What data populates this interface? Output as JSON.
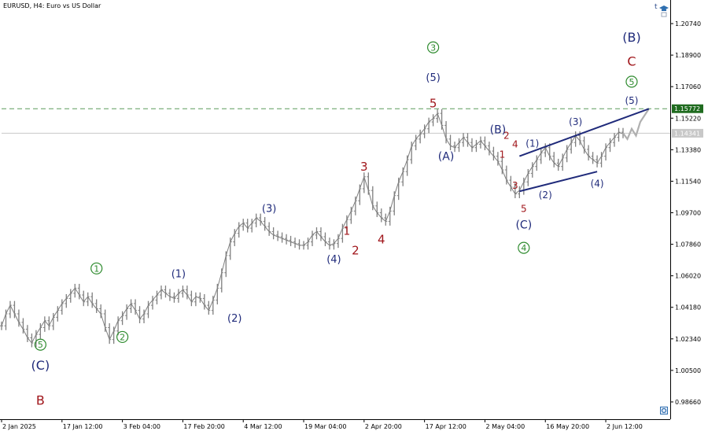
{
  "header": {
    "symbol": "EURUSD",
    "timeframe": "H4",
    "description": "Euro vs US Dollar"
  },
  "icons": {
    "trading": "t",
    "cap": "graduation-cap-icon",
    "marker": "circle-marker-icon"
  },
  "colors": {
    "price": "#7f7f7f",
    "wave_blue": "#1f2a7a",
    "wave_red": "#a0161b",
    "wave_green": "#2e8b2e",
    "level_line": "#5a9a5a",
    "level_badge": "#1f6b1f",
    "current_badge": "#c8c8c8",
    "channel": "#1f2a7a",
    "projection": "#b0b0b0"
  },
  "chart_data": {
    "type": "line",
    "ylim": [
      0.9765,
      1.2175
    ],
    "y_ticks": [
      "1.20740",
      "1.18900",
      "1.17060",
      "1.15220",
      "1.13380",
      "1.11540",
      "1.09700",
      "1.07860",
      "1.06020",
      "1.04180",
      "1.02340",
      "1.00500",
      "0.98660"
    ],
    "x_ticks": [
      "2 Jan 2025",
      "17 Jan 12:00",
      "3 Feb 04:00",
      "17 Feb 20:00",
      "4 Mar 12:00",
      "19 Mar 04:00",
      "2 Apr 20:00",
      "17 Apr 12:00",
      "2 May 04:00",
      "16 May 20:00",
      "2 Jun 12:00"
    ],
    "x_tick_index": [
      0,
      14,
      28,
      42,
      56,
      70,
      84,
      98,
      112,
      126,
      140
    ],
    "price_badges": [
      {
        "label": "1.15772",
        "value": 1.15772,
        "kind": "level"
      },
      {
        "label": "1.14341",
        "value": 1.14341,
        "kind": "current"
      }
    ],
    "close": [
      1.031,
      1.038,
      1.043,
      1.038,
      1.033,
      1.029,
      1.024,
      1.021,
      1.026,
      1.03,
      1.034,
      1.031,
      1.036,
      1.04,
      1.044,
      1.047,
      1.05,
      1.053,
      1.049,
      1.045,
      1.048,
      1.044,
      1.041,
      1.038,
      1.03,
      1.023,
      1.028,
      1.034,
      1.037,
      1.041,
      1.044,
      1.04,
      1.035,
      1.038,
      1.043,
      1.046,
      1.049,
      1.052,
      1.05,
      1.048,
      1.047,
      1.05,
      1.052,
      1.049,
      1.045,
      1.048,
      1.047,
      1.043,
      1.04,
      1.046,
      1.053,
      1.062,
      1.072,
      1.08,
      1.085,
      1.089,
      1.091,
      1.088,
      1.091,
      1.094,
      1.092,
      1.089,
      1.086,
      1.084,
      1.083,
      1.082,
      1.081,
      1.08,
      1.079,
      1.078,
      1.078,
      1.08,
      1.084,
      1.086,
      1.083,
      1.08,
      1.078,
      1.079,
      1.082,
      1.088,
      1.093,
      1.098,
      1.104,
      1.111,
      1.118,
      1.11,
      1.101,
      1.097,
      1.094,
      1.092,
      1.098,
      1.107,
      1.115,
      1.121,
      1.128,
      1.136,
      1.14,
      1.143,
      1.146,
      1.15,
      1.152,
      1.155,
      1.148,
      1.14,
      1.136,
      1.135,
      1.138,
      1.141,
      1.138,
      1.135,
      1.137,
      1.139,
      1.136,
      1.133,
      1.13,
      1.127,
      1.122,
      1.116,
      1.112,
      1.108,
      1.11,
      1.115,
      1.12,
      1.124,
      1.128,
      1.132,
      1.135,
      1.13,
      1.126,
      1.124,
      1.129,
      1.134,
      1.138,
      1.142,
      1.139,
      1.134,
      1.13,
      1.128,
      1.126,
      1.13,
      1.135,
      1.138,
      1.141,
      1.144,
      1.143
    ],
    "projection": [
      {
        "i": 144,
        "y": 1.1434
      },
      {
        "i": 145,
        "y": 1.14
      },
      {
        "i": 146,
        "y": 1.146
      },
      {
        "i": 147,
        "y": 1.142
      },
      {
        "i": 148,
        "y": 1.15
      },
      {
        "i": 150,
        "y": 1.1577
      }
    ],
    "channel_lines": [
      [
        {
          "i": 120,
          "y": 1.13
        },
        {
          "i": 150,
          "y": 1.1577
        }
      ],
      [
        {
          "i": 120,
          "y": 1.1095
        },
        {
          "i": 138,
          "y": 1.121
        }
      ]
    ],
    "wave_labels": [
      {
        "text": "(C)",
        "i": 9,
        "y": 1.008,
        "color": "blue",
        "size": 16
      },
      {
        "text": "5",
        "i": 9,
        "y": 1.02,
        "color": "green",
        "circled": true
      },
      {
        "text": "B",
        "i": 9,
        "y": 0.9875,
        "color": "red",
        "size": 16
      },
      {
        "text": "1",
        "i": 22,
        "y": 1.0645,
        "color": "green",
        "circled": true
      },
      {
        "text": "2",
        "i": 28,
        "y": 1.0245,
        "color": "green",
        "circled": true
      },
      {
        "text": "(1)",
        "i": 41,
        "y": 1.0615,
        "color": "blue",
        "size": 13
      },
      {
        "text": "(2)",
        "i": 54,
        "y": 1.0355,
        "color": "blue",
        "size": 13
      },
      {
        "text": "(3)",
        "i": 62,
        "y": 1.0995,
        "color": "blue",
        "size": 13
      },
      {
        "text": "(4)",
        "i": 77,
        "y": 1.07,
        "color": "blue",
        "size": 13
      },
      {
        "text": "1",
        "i": 80,
        "y": 1.0865,
        "color": "red",
        "size": 14
      },
      {
        "text": "2",
        "i": 82,
        "y": 1.075,
        "color": "red",
        "size": 15
      },
      {
        "text": "3",
        "i": 84,
        "y": 1.124,
        "color": "red",
        "size": 15
      },
      {
        "text": "4",
        "i": 88,
        "y": 1.0815,
        "color": "red",
        "size": 15
      },
      {
        "text": "3",
        "i": 100,
        "y": 1.1935,
        "color": "green",
        "circled": true
      },
      {
        "text": "(5)",
        "i": 100,
        "y": 1.176,
        "color": "blue",
        "size": 13
      },
      {
        "text": "5",
        "i": 100,
        "y": 1.161,
        "color": "red",
        "size": 15
      },
      {
        "text": "(A)",
        "i": 103,
        "y": 1.13,
        "color": "blue",
        "size": 14
      },
      {
        "text": "(B)",
        "i": 115,
        "y": 1.1455,
        "color": "blue",
        "size": 14
      },
      {
        "text": "2",
        "i": 117,
        "y": 1.142,
        "color": "red",
        "size": 12
      },
      {
        "text": "4",
        "i": 119,
        "y": 1.137,
        "color": "red",
        "size": 12
      },
      {
        "text": "1",
        "i": 116,
        "y": 1.131,
        "color": "red",
        "size": 12
      },
      {
        "text": "3",
        "i": 119,
        "y": 1.113,
        "color": "red",
        "size": 12
      },
      {
        "text": "(1)",
        "i": 123,
        "y": 1.1375,
        "color": "blue",
        "size": 12
      },
      {
        "text": "5",
        "i": 121,
        "y": 1.0995,
        "color": "red",
        "size": 12
      },
      {
        "text": "(2)",
        "i": 126,
        "y": 1.1075,
        "color": "blue",
        "size": 12
      },
      {
        "text": "(C)",
        "i": 121,
        "y": 1.09,
        "color": "blue",
        "size": 14
      },
      {
        "text": "4",
        "i": 121,
        "y": 1.0765,
        "color": "green",
        "circled": true
      },
      {
        "text": "(3)",
        "i": 133,
        "y": 1.15,
        "color": "blue",
        "size": 12
      },
      {
        "text": "(4)",
        "i": 138,
        "y": 1.114,
        "color": "blue",
        "size": 12
      },
      {
        "text": "(B)",
        "i": 146,
        "y": 1.1995,
        "color": "blue",
        "size": 16
      },
      {
        "text": "C",
        "i": 146,
        "y": 1.1855,
        "color": "red",
        "size": 16
      },
      {
        "text": "5",
        "i": 146,
        "y": 1.1735,
        "color": "green",
        "circled": true
      },
      {
        "text": "(5)",
        "i": 146,
        "y": 1.1625,
        "color": "blue",
        "size": 12
      }
    ]
  }
}
